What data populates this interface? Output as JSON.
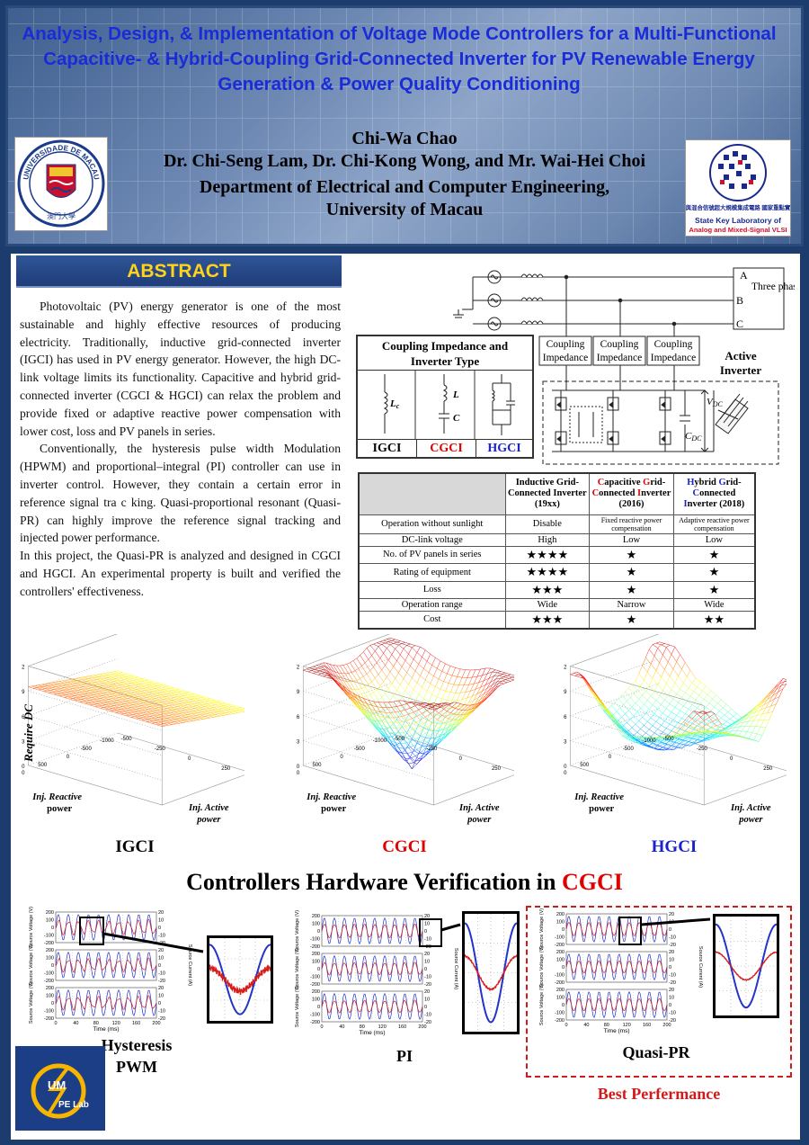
{
  "header": {
    "title": "Analysis, Design, & Implementation of Voltage Mode Controllers for a Multi-Functional Capacitive- & Hybrid-Coupling Grid-Connected Inverter for PV Renewable Energy Generation & Power Quality Conditioning",
    "author": "Chi-Wa Chao",
    "coauthors": "Dr. Chi-Seng Lam, Dr. Chi-Kong Wong, and Mr. Wai-Hei Choi",
    "department": "Department of Electrical and Computer Engineering,",
    "university": "University of Macau",
    "um_logo_text_top": "UNIVERSIDADE DE MACAU",
    "um_logo_text_bottom": "澳門大學",
    "sk_logo_chinese": "模擬與混合信號超大規模集成電路 國家重點實驗室",
    "sk_logo_line1": "State Key Laboratory of",
    "sk_logo_line2": "Analog and Mixed-Signal VLSI"
  },
  "abstract": {
    "heading": "ABSTRACT",
    "p1": "Photovoltaic (PV) energy generator is one of the most sustainable and highly effective resources of producing electricity. Traditionally, inductive grid-connected inverter (IGCI) has used in PV energy generator. However, the high DC-link voltage limits its functionality. Capacitive and hybrid grid-connected inverter (CGCI & HGCI) can relax the problem and provide fixed or adaptive reactive power compensation with lower cost, loss and PV panels in series.",
    "p2": "Conventionally, the hysteresis pulse width Modulation (HPWM) and proportional–integral (PI) controller can use in inverter control. However, they contain a certain error in reference signal tra c king. Quasi-proportional resonant (Quasi-PR) can highly improve the reference signal tracking and injected power performance.",
    "p3": "In this project, the Quasi-PR is analyzed and designed in CGCI and HGCI. An experimental property is built and verified the controllers' effectiveness."
  },
  "circuit": {
    "phases": [
      "A",
      "B",
      "C"
    ],
    "load_label": "Three phase loads",
    "coupling_label": "Coupling Impedance",
    "active_inverter": "Active Inverter",
    "vdc": "V",
    "vdc_sub": "DC",
    "cdc": "C",
    "cdc_sub": "DC"
  },
  "impedance_table": {
    "title": "Coupling Impedance and Inverter Type",
    "types": [
      "IGCI",
      "CGCI",
      "HGCI"
    ],
    "lc": "L",
    "lc_sub": "c",
    "l": "L",
    "c": "C"
  },
  "comparison_table": {
    "columns": [
      {
        "pre": "Inductive Grid-Connected Inverter (19xx)"
      },
      {
        "c1": "C",
        "r1": "apacitive ",
        "c2": "G",
        "r2": "rid-",
        "c3": "C",
        "r3": "onnected ",
        "c4": "I",
        "r4": "nverter (2016)"
      },
      {
        "c1": "H",
        "r1": "ybrid ",
        "c2": "G",
        "r2": "rid-",
        "c3": "C",
        "r3": "onnected ",
        "c4": "I",
        "r4": "nverter (2018)"
      }
    ],
    "rows": [
      {
        "label": "Operation without sunlight",
        "v": [
          "Disable",
          "Fixed reactive power compensation",
          "Adaptive reactive power compensation"
        ]
      },
      {
        "label": "DC-link voltage",
        "v": [
          "High",
          "Low",
          "Low"
        ]
      },
      {
        "label": "No. of PV panels in series",
        "v": [
          "★★★★",
          "★",
          "★"
        ]
      },
      {
        "label": "Rating of equipment",
        "v": [
          "★★★★",
          "★",
          "★"
        ]
      },
      {
        "label": "Loss",
        "v": [
          "★★★",
          "★",
          "★"
        ]
      },
      {
        "label": "Operation range",
        "v": [
          "Wide",
          "Narrow",
          "Wide"
        ]
      },
      {
        "label": "Cost",
        "v": [
          "★★★",
          "★",
          "★★"
        ]
      }
    ]
  },
  "surface_plots": {
    "zlabel": "Require DC",
    "ylabel": "Inj. Reactive power",
    "xlabel": "Inj. Active power",
    "z_ticks": [
      "1.2",
      "0.9",
      "0.6",
      "0.3",
      "0"
    ],
    "y_ticks": [
      "1000",
      "500",
      "0",
      "-500",
      "-1000"
    ],
    "x_ticks": [
      "500",
      "250",
      "0",
      "-250",
      "-500"
    ],
    "labels": [
      "IGCI",
      "CGCI",
      "HGCI"
    ]
  },
  "hardware": {
    "title_pre": "Controllers Hardware Verification in ",
    "title_hl": "CGCI",
    "controllers": [
      "Hysteresis PWM",
      "PI",
      "Quasi-PR"
    ],
    "hyst_l1": "Hysteresis",
    "hyst_l2": "PWM",
    "best": "Best Perfermance",
    "time_label": "Time (ms)",
    "time_ticks": [
      "0",
      "40",
      "80",
      "120",
      "160",
      "200"
    ],
    "y_ticks": [
      "200",
      "100",
      "0",
      "-100",
      "-200"
    ],
    "i_ticks": [
      "20",
      "10",
      "0",
      "-10",
      "-20"
    ],
    "y_label": "Source Voltage (V)",
    "i_label": "Source Current (A)"
  },
  "lab_logo": {
    "line1": "UM",
    "line2": "PE Lab"
  },
  "colors": {
    "title": "#1a2bd8",
    "accent": "#e00000",
    "hgci": "#1a23c8",
    "abstract_heading": "#ffd21c"
  }
}
